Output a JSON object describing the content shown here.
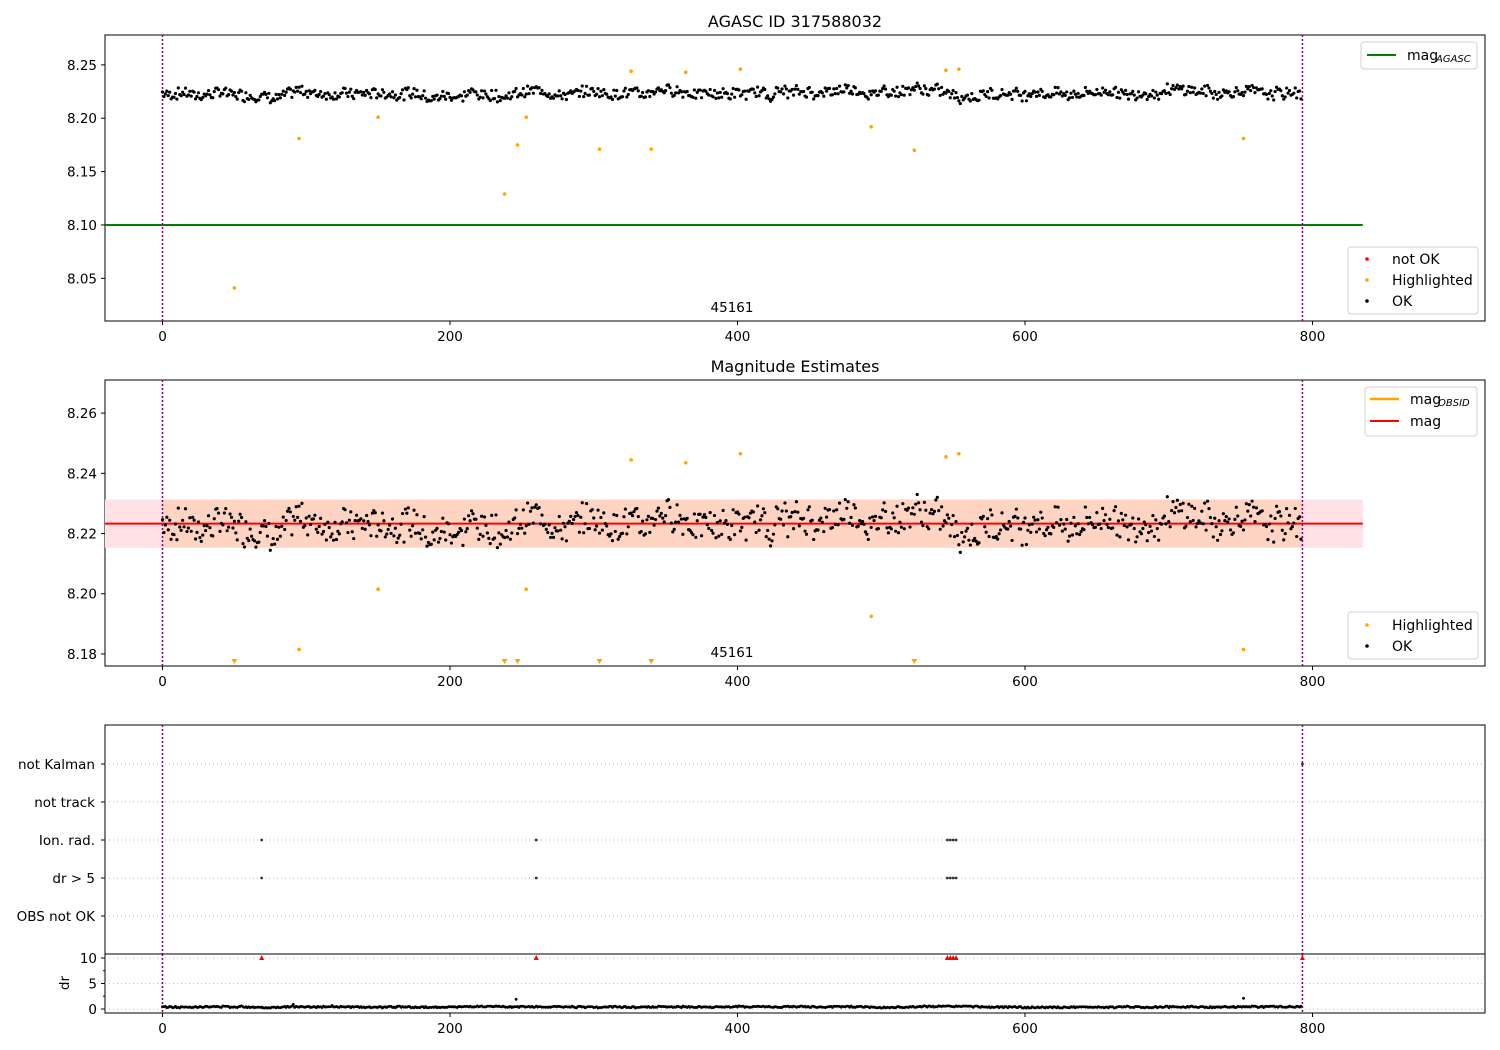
{
  "colors": {
    "ok": "#000000",
    "highlighted": "#ffa500",
    "not_ok": "#ff0000",
    "agasc_line": "#008000",
    "mag_line": "#ff0000",
    "obsid_line": "#ffa500",
    "band_inner": "#ffd4c3",
    "band_outer": "#ffe1e6",
    "vline": "#800080"
  },
  "chart_data": [
    {
      "type": "scatter",
      "title": "AGASC ID 317588032",
      "annotation": "45161",
      "xlim": [
        -40,
        920
      ],
      "ylim": [
        8.01,
        8.278
      ],
      "xticks": [
        0,
        200,
        400,
        600,
        800
      ],
      "yticks": [
        8.05,
        8.1,
        8.15,
        8.2,
        8.25
      ],
      "ytick_labels": [
        "8.05",
        "8.10",
        "8.15",
        "8.20",
        "8.25"
      ],
      "vlines": [
        0,
        793
      ],
      "hlines": [
        {
          "name": "mag_AGASC",
          "y": 8.1,
          "x": [
            -40,
            835
          ],
          "color": "green"
        }
      ],
      "legend_lines": [
        {
          "label": "mag",
          "sub": "AGASC",
          "color": "green"
        }
      ],
      "legend_points": [
        {
          "label": "not OK",
          "color": "red"
        },
        {
          "label": "Highlighted",
          "color": "orange"
        },
        {
          "label": "OK",
          "color": "black"
        }
      ],
      "ok_series": {
        "name": "OK",
        "n": 793,
        "base": 8.224,
        "spread": 0.009
      },
      "highlighted_points": [
        [
          50,
          8.041
        ],
        [
          95,
          8.181
        ],
        [
          150,
          8.201
        ],
        [
          238,
          8.129
        ],
        [
          247,
          8.175
        ],
        [
          253,
          8.201
        ],
        [
          304,
          8.171
        ],
        [
          326,
          8.244
        ],
        [
          340,
          8.171
        ],
        [
          364,
          8.243
        ],
        [
          402,
          8.246
        ],
        [
          493,
          8.192
        ],
        [
          523,
          8.17
        ],
        [
          545,
          8.245
        ],
        [
          554,
          8.246
        ],
        [
          752,
          8.181
        ]
      ]
    },
    {
      "type": "scatter",
      "title": "Magnitude Estimates",
      "annotation": "45161",
      "xlim": [
        -40,
        920
      ],
      "ylim": [
        8.176,
        8.271
      ],
      "xticks": [
        0,
        200,
        400,
        600,
        800
      ],
      "yticks": [
        8.18,
        8.2,
        8.22,
        8.24,
        8.26
      ],
      "ytick_labels": [
        "8.18",
        "8.20",
        "8.22",
        "8.24",
        "8.26"
      ],
      "vlines": [
        0,
        793
      ],
      "mag": 8.2233,
      "band_outer": [
        8.2153,
        8.2313
      ],
      "band_inner": [
        8.2153,
        8.2313
      ],
      "band_x": [
        -40,
        835
      ],
      "legend_lines": [
        {
          "label": "mag",
          "sub": "OBSID",
          "color": "orange"
        },
        {
          "label": "mag",
          "sub": "",
          "color": "red"
        }
      ],
      "legend_points": [
        {
          "label": "Highlighted",
          "color": "orange"
        },
        {
          "label": "OK",
          "color": "black"
        }
      ],
      "ok_series": {
        "name": "OK",
        "n": 793,
        "base": 8.224,
        "spread": 0.009
      },
      "highlighted_points": [
        [
          95,
          8.1815
        ],
        [
          150,
          8.2015
        ],
        [
          253,
          8.2015
        ],
        [
          326,
          8.2445
        ],
        [
          364,
          8.2435
        ],
        [
          402,
          8.2465
        ],
        [
          493,
          8.1925
        ],
        [
          545,
          8.2455
        ],
        [
          554,
          8.2465
        ],
        [
          752,
          8.1815
        ]
      ],
      "offscale_markers_x": [
        50,
        238,
        247,
        304,
        340,
        523
      ]
    },
    {
      "type": "scatter",
      "xlim": [
        -40,
        920
      ],
      "categories": [
        "not Kalman",
        "not track",
        "Ion. rad.",
        "dr > 5",
        "OBS not OK"
      ],
      "vlines": [
        0,
        793
      ],
      "flags": {
        "not Kalman": [
          793
        ],
        "not track": [],
        "Ion. rad.": [
          69,
          260,
          546,
          548,
          550,
          552
        ],
        "dr > 5": [
          69,
          260,
          546,
          548,
          550,
          552
        ],
        "OBS not OK": []
      }
    },
    {
      "type": "scatter",
      "ylabel": "dr",
      "xlim": [
        -40,
        920
      ],
      "ylim": [
        -0.5,
        10.5
      ],
      "xticks": [
        0,
        200,
        400,
        600,
        800
      ],
      "yticks": [
        0,
        5,
        10
      ],
      "ytick_labels": [
        "0",
        "5",
        "10"
      ],
      "vlines": [
        0,
        793
      ],
      "clipped_points_x": [
        69,
        260,
        546,
        548,
        550,
        552,
        793
      ],
      "outlier_points": [
        [
          246,
          1.9
        ],
        [
          752,
          2.1
        ],
        [
          91,
          0.9
        ]
      ],
      "ok_series": {
        "name": "dr",
        "n": 793,
        "base": 0.4,
        "spread": 0.25
      }
    }
  ]
}
